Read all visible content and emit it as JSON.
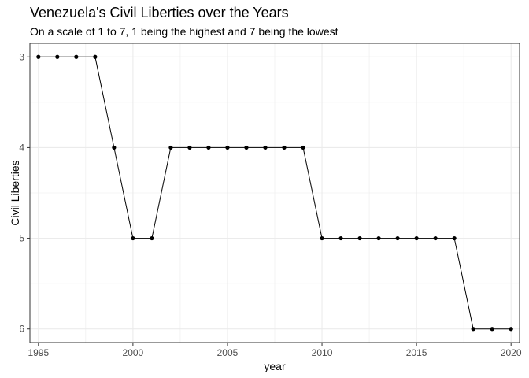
{
  "chart_data": {
    "type": "line",
    "title": "Venezuela's Civil Liberties over the Years",
    "subtitle": "On a scale of 1 to 7, 1 being the highest and 7 being the lowest",
    "xlabel": "year",
    "ylabel": "Civil Liberties",
    "x": [
      1995,
      1996,
      1997,
      1998,
      1999,
      2000,
      2001,
      2002,
      2003,
      2004,
      2005,
      2006,
      2007,
      2008,
      2009,
      2010,
      2011,
      2012,
      2013,
      2014,
      2015,
      2016,
      2017,
      2018,
      2019,
      2020
    ],
    "series": [
      {
        "values": [
          3,
          3,
          3,
          3,
          4,
          5,
          5,
          4,
          4,
          4,
          4,
          4,
          4,
          4,
          4,
          5,
          5,
          5,
          5,
          5,
          5,
          5,
          5,
          6,
          6,
          6
        ]
      }
    ],
    "xlim": [
      1994.55,
      2020.45
    ],
    "ylim": [
      2.85,
      6.15
    ],
    "y_reversed": true,
    "xticks": [
      "1995",
      "2000",
      "2005",
      "2010",
      "2015",
      "2020"
    ],
    "yticks": [
      "3",
      "4",
      "5",
      "6"
    ],
    "grid": true,
    "legend": "none",
    "colors": {
      "line": "#000000",
      "point": "#000000",
      "grid": "#ebebeb",
      "panel_border": "#333333"
    }
  }
}
